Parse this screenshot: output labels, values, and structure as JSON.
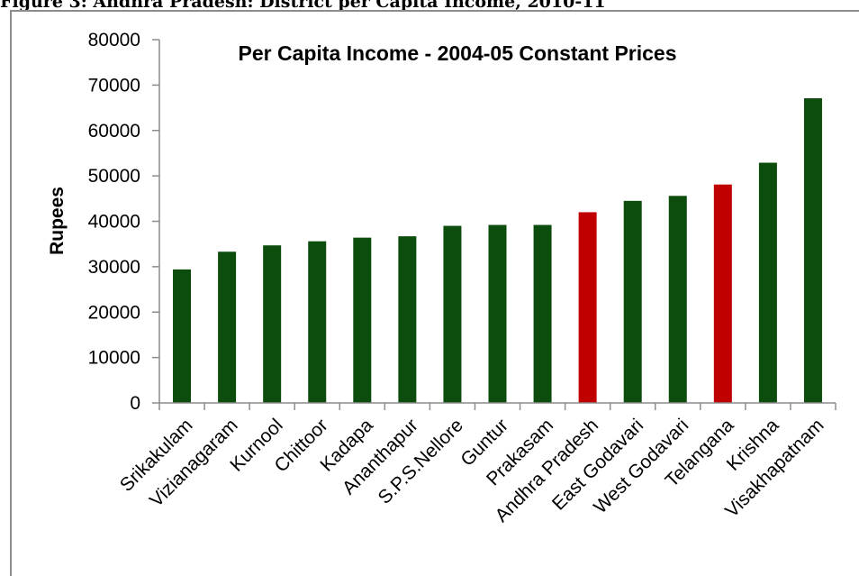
{
  "figure": {
    "caption": "Figure 3: Andhra Pradesh: District per Capita Income, 2010-11"
  },
  "colors": {
    "district": "#0c4c0c",
    "highlight": "#c00000",
    "axis": "#8c8c8c"
  },
  "chart_data": {
    "type": "bar",
    "title": "Per Capita Income - 2004-05 Constant Prices",
    "xlabel": "",
    "ylabel": "Rupees",
    "ylim": [
      0,
      80000
    ],
    "yticks": [
      0,
      10000,
      20000,
      30000,
      40000,
      50000,
      60000,
      70000,
      80000
    ],
    "grid": false,
    "legend": "none",
    "categories": [
      "Srikakulam",
      "Vizianagaram",
      "Kurnool",
      "Chittoor",
      "Kadapa",
      "Ananthapur",
      "S.P.S.Nellore",
      "Guntur",
      "Prakasam",
      "Andhra Pradesh",
      "East Godavari",
      "West Godavari",
      "Telangana",
      "Krishna",
      "Visakhapatnam"
    ],
    "values": [
      29400,
      33300,
      34700,
      35600,
      36400,
      36700,
      39000,
      39200,
      39200,
      42000,
      44500,
      45600,
      48100,
      52900,
      67100
    ],
    "highlighted": [
      "Andhra Pradesh",
      "Telangana"
    ]
  }
}
